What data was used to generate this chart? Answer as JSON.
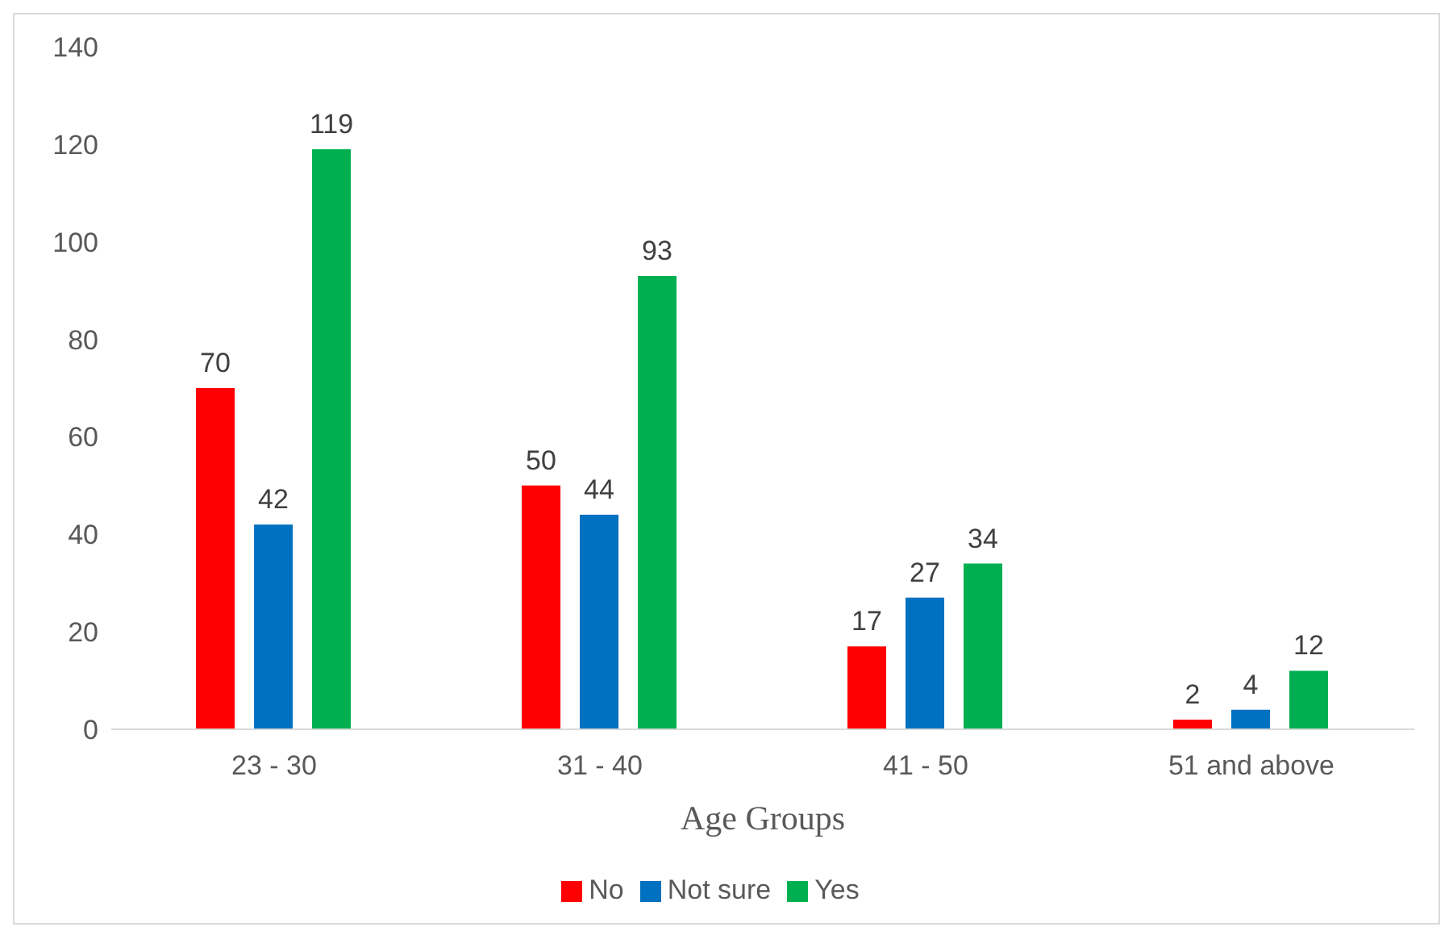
{
  "chart_data": {
    "type": "bar",
    "xlabel": "Age Groups",
    "categories": [
      "23 - 30",
      "31 - 40",
      "41 - 50",
      "51 and above"
    ],
    "series": [
      {
        "name": "No",
        "color": "#ff0000",
        "values": [
          70,
          50,
          17,
          2
        ]
      },
      {
        "name": "Not sure",
        "color": "#0070c0",
        "values": [
          42,
          44,
          27,
          4
        ]
      },
      {
        "name": "Yes",
        "color": "#00b050",
        "values": [
          119,
          93,
          34,
          12
        ]
      }
    ],
    "ylim": [
      0,
      140
    ],
    "yticks": [
      0,
      20,
      40,
      60,
      80,
      100,
      120,
      140
    ],
    "grid": false,
    "legend": "bottom",
    "data_labels": true
  }
}
